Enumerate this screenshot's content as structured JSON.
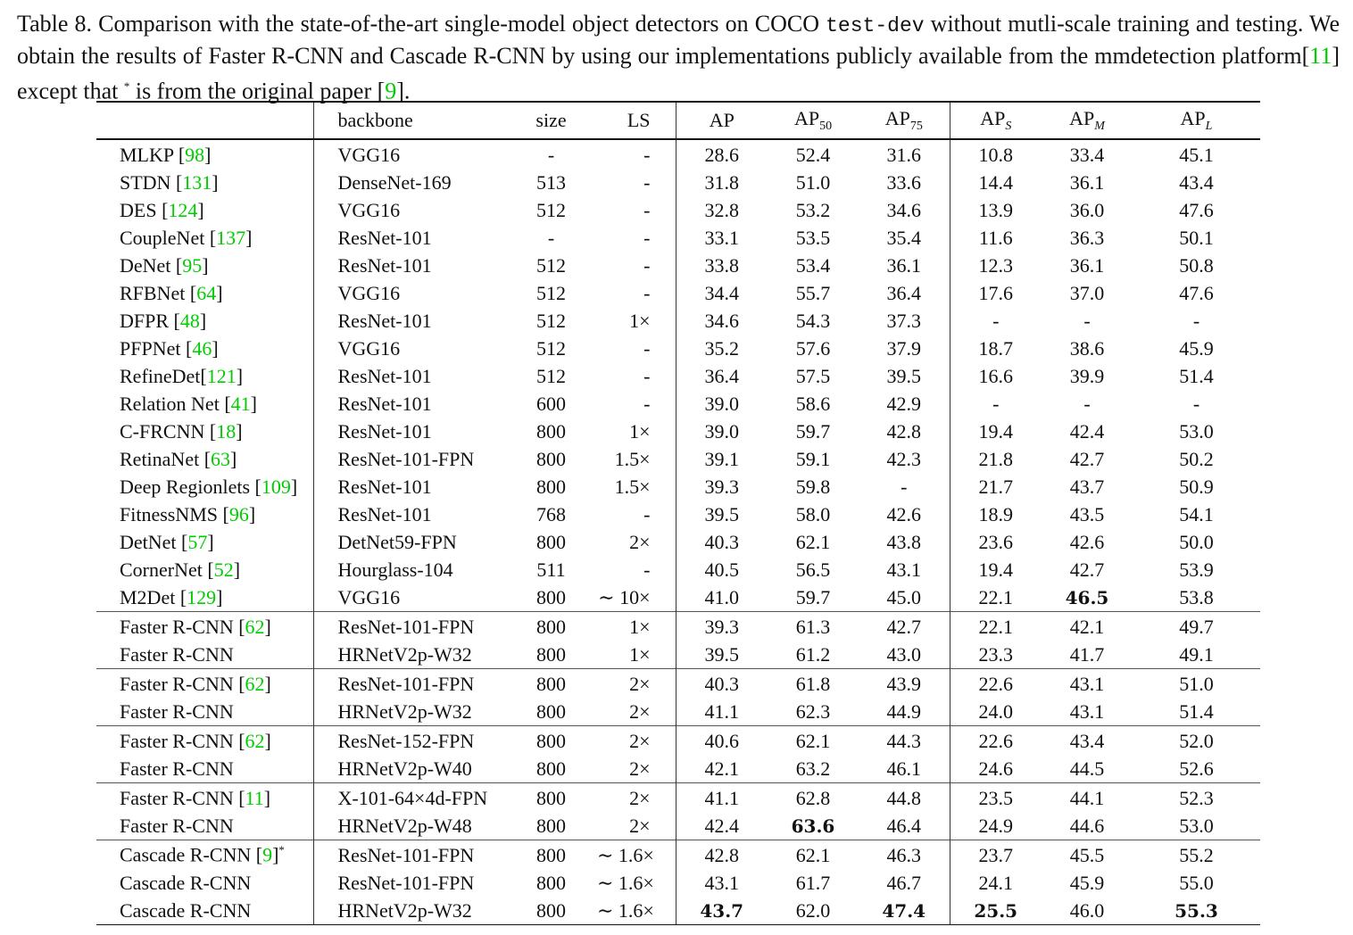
{
  "caption": {
    "part1": "Table 8. Comparison with the state-of-the-art single-model object detectors on COCO ",
    "mono": "test-dev",
    "part2": " without mutli-scale training and testing. We obtain the results of Faster R-CNN and Cascade R-CNN by using our implementations publicly available from the mmdetection platform[",
    "ref1": "11",
    "part3": "] except that ",
    "star": "*",
    "part4": " is from the original paper [",
    "ref2": "9",
    "part5": "]."
  },
  "headers": {
    "backbone": "backbone",
    "size": "size",
    "ls": "LS",
    "ap": "AP",
    "ap50_base": "AP",
    "ap50_sub": "50",
    "ap75_base": "AP",
    "ap75_sub": "75",
    "aps_base": "AP",
    "aps_sub": "S",
    "apm_base": "AP",
    "apm_sub": "M",
    "apl_base": "AP",
    "apl_sub": "L"
  },
  "groups": [
    [
      {
        "name": "MLKP ",
        "ref": "98",
        "close": "]",
        "backbone": "VGG16",
        "size": "-",
        "ls": "-",
        "ap": "28.6",
        "ap50": "52.4",
        "ap75": "31.6",
        "aps": "10.8",
        "apm": "33.4",
        "apl": "45.1"
      },
      {
        "name": "STDN ",
        "ref": "131",
        "close": "]",
        "backbone": "DenseNet-169",
        "size": "513",
        "ls": "-",
        "ap": "31.8",
        "ap50": "51.0",
        "ap75": "33.6",
        "aps": "14.4",
        "apm": "36.1",
        "apl": "43.4"
      },
      {
        "name": "DES ",
        "ref": "124",
        "close": "]",
        "backbone": "VGG16",
        "size": "512",
        "ls": "-",
        "ap": "32.8",
        "ap50": "53.2",
        "ap75": "34.6",
        "aps": "13.9",
        "apm": "36.0",
        "apl": "47.6"
      },
      {
        "name": "CoupleNet ",
        "ref": "137",
        "close": "]",
        "backbone": "ResNet-101",
        "size": "-",
        "ls": "-",
        "ap": "33.1",
        "ap50": "53.5",
        "ap75": "35.4",
        "aps": "11.6",
        "apm": "36.3",
        "apl": "50.1"
      },
      {
        "name": "DeNet ",
        "ref": "95",
        "close": "]",
        "backbone": "ResNet-101",
        "size": "512",
        "ls": "-",
        "ap": "33.8",
        "ap50": "53.4",
        "ap75": "36.1",
        "aps": "12.3",
        "apm": "36.1",
        "apl": "50.8"
      },
      {
        "name": "RFBNet ",
        "ref": "64",
        "close": "]",
        "backbone": "VGG16",
        "size": "512",
        "ls": "-",
        "ap": "34.4",
        "ap50": "55.7",
        "ap75": "36.4",
        "aps": "17.6",
        "apm": "37.0",
        "apl": "47.6"
      },
      {
        "name": "DFPR ",
        "ref": "48",
        "close": "]",
        "backbone": "ResNet-101",
        "size": "512",
        "ls": "1×",
        "ap": "34.6",
        "ap50": "54.3",
        "ap75": "37.3",
        "aps": "-",
        "apm": "-",
        "apl": "-"
      },
      {
        "name": "PFPNet ",
        "ref": "46",
        "close": "]",
        "backbone": "VGG16",
        "size": "512",
        "ls": "-",
        "ap": "35.2",
        "ap50": "57.6",
        "ap75": "37.9",
        "aps": "18.7",
        "apm": "38.6",
        "apl": "45.9"
      },
      {
        "name": "RefineDet",
        "ref": "121",
        "close": "]",
        "backbone": "ResNet-101",
        "size": "512",
        "ls": "-",
        "ap": "36.4",
        "ap50": "57.5",
        "ap75": "39.5",
        "aps": "16.6",
        "apm": "39.9",
        "apl": "51.4"
      },
      {
        "name": "Relation Net ",
        "ref": "41",
        "close": "]",
        "backbone": "ResNet-101",
        "size": "600",
        "ls": "-",
        "ap": "39.0",
        "ap50": "58.6",
        "ap75": "42.9",
        "aps": "-",
        "apm": "-",
        "apl": "-"
      },
      {
        "name": "C-FRCNN ",
        "ref": "18",
        "close": "]",
        "backbone": "ResNet-101",
        "size": "800",
        "ls": "1×",
        "ap": "39.0",
        "ap50": "59.7",
        "ap75": "42.8",
        "aps": "19.4",
        "apm": "42.4",
        "apl": "53.0"
      },
      {
        "name": "RetinaNet ",
        "ref": "63",
        "close": "]",
        "backbone": "ResNet-101-FPN",
        "size": "800",
        "ls": "1.5×",
        "ap": "39.1",
        "ap50": "59.1",
        "ap75": "42.3",
        "aps": "21.8",
        "apm": "42.7",
        "apl": "50.2"
      },
      {
        "name": "Deep Regionlets ",
        "ref": "109",
        "close": "]",
        "backbone": "ResNet-101",
        "size": "800",
        "ls": "1.5×",
        "ap": "39.3",
        "ap50": "59.8",
        "ap75": "-",
        "aps": "21.7",
        "apm": "43.7",
        "apl": "50.9"
      },
      {
        "name": "FitnessNMS ",
        "ref": "96",
        "close": "]",
        "backbone": "ResNet-101",
        "size": "768",
        "ls": "-",
        "ap": "39.5",
        "ap50": "58.0",
        "ap75": "42.6",
        "aps": "18.9",
        "apm": "43.5",
        "apl": "54.1"
      },
      {
        "name": "DetNet ",
        "ref": "57",
        "close": "]",
        "backbone": "DetNet59-FPN",
        "size": "800",
        "ls": "2×",
        "ap": "40.3",
        "ap50": "62.1",
        "ap75": "43.8",
        "aps": "23.6",
        "apm": "42.6",
        "apl": "50.0"
      },
      {
        "name": "CornerNet ",
        "ref": "52",
        "close": "]",
        "backbone": "Hourglass-104",
        "size": "511",
        "ls": "-",
        "ap": "40.5",
        "ap50": "56.5",
        "ap75": "43.1",
        "aps": "19.4",
        "apm": "42.7",
        "apl": "53.9"
      },
      {
        "name": "M2Det ",
        "ref": "129",
        "close": "]",
        "backbone": "VGG16",
        "size": "800",
        "ls": "∼ 10×",
        "ap": "41.0",
        "ap50": "59.7",
        "ap75": "45.0",
        "aps": "22.1",
        "apm": "46.5",
        "apl": "53.8",
        "bold": [
          "apm"
        ]
      }
    ],
    [
      {
        "name": "Faster R-CNN ",
        "ref": "62",
        "close": "]",
        "backbone": "ResNet-101-FPN",
        "size": "800",
        "ls": "1×",
        "ap": "39.3",
        "ap50": "61.3",
        "ap75": "42.7",
        "aps": "22.1",
        "apm": "42.1",
        "apl": "49.7"
      },
      {
        "name": "Faster R-CNN",
        "ref": "",
        "close": "",
        "backbone": "HRNetV2p-W32",
        "size": "800",
        "ls": "1×",
        "ap": "39.5",
        "ap50": "61.2",
        "ap75": "43.0",
        "aps": "23.3",
        "apm": "41.7",
        "apl": "49.1"
      }
    ],
    [
      {
        "name": "Faster R-CNN ",
        "ref": "62",
        "close": "]",
        "backbone": "ResNet-101-FPN",
        "size": "800",
        "ls": "2×",
        "ap": "40.3",
        "ap50": "61.8",
        "ap75": "43.9",
        "aps": "22.6",
        "apm": "43.1",
        "apl": "51.0"
      },
      {
        "name": "Faster R-CNN",
        "ref": "",
        "close": "",
        "backbone": "HRNetV2p-W32",
        "size": "800",
        "ls": "2×",
        "ap": "41.1",
        "ap50": "62.3",
        "ap75": "44.9",
        "aps": "24.0",
        "apm": "43.1",
        "apl": "51.4"
      }
    ],
    [
      {
        "name": "Faster R-CNN ",
        "ref": "62",
        "close": "]",
        "backbone": "ResNet-152-FPN",
        "size": "800",
        "ls": "2×",
        "ap": "40.6",
        "ap50": "62.1",
        "ap75": "44.3",
        "aps": "22.6",
        "apm": "43.4",
        "apl": "52.0"
      },
      {
        "name": "Faster R-CNN",
        "ref": "",
        "close": "",
        "backbone": "HRNetV2p-W40",
        "size": "800",
        "ls": "2×",
        "ap": "42.1",
        "ap50": "63.2",
        "ap75": "46.1",
        "aps": "24.6",
        "apm": "44.5",
        "apl": "52.6"
      }
    ],
    [
      {
        "name": "Faster R-CNN ",
        "ref": "11",
        "close": "]",
        "backbone": "X-101-64×4d-FPN",
        "size": "800",
        "ls": "2×",
        "ap": "41.1",
        "ap50": "62.8",
        "ap75": "44.8",
        "aps": "23.5",
        "apm": "44.1",
        "apl": "52.3"
      },
      {
        "name": "Faster R-CNN",
        "ref": "",
        "close": "",
        "backbone": "HRNetV2p-W48",
        "size": "800",
        "ls": "2×",
        "ap": "42.4",
        "ap50": "63.6",
        "ap75": "46.4",
        "aps": "24.9",
        "apm": "44.6",
        "apl": "53.0",
        "bold": [
          "ap50"
        ]
      }
    ],
    [
      {
        "name": "Cascade R-CNN ",
        "ref": "9",
        "close": "]*",
        "backbone": "ResNet-101-FPN",
        "size": "800",
        "ls": "∼ 1.6×",
        "ap": "42.8",
        "ap50": "62.1",
        "ap75": "46.3",
        "aps": "23.7",
        "apm": "45.5",
        "apl": "55.2"
      },
      {
        "name": "Cascade R-CNN",
        "ref": "",
        "close": "",
        "backbone": "ResNet-101-FPN",
        "size": "800",
        "ls": "∼ 1.6×",
        "ap": "43.1",
        "ap50": "61.7",
        "ap75": "46.7",
        "aps": "24.1",
        "apm": "45.9",
        "apl": "55.0"
      },
      {
        "name": "Cascade R-CNN",
        "ref": "",
        "close": "",
        "backbone": "HRNetV2p-W32",
        "size": "800",
        "ls": "∼ 1.6×",
        "ap": "43.7",
        "ap50": "62.0",
        "ap75": "47.4",
        "aps": "25.5",
        "apm": "46.0",
        "apl": "55.3",
        "bold": [
          "ap",
          "ap75",
          "aps",
          "apl"
        ]
      }
    ]
  ]
}
